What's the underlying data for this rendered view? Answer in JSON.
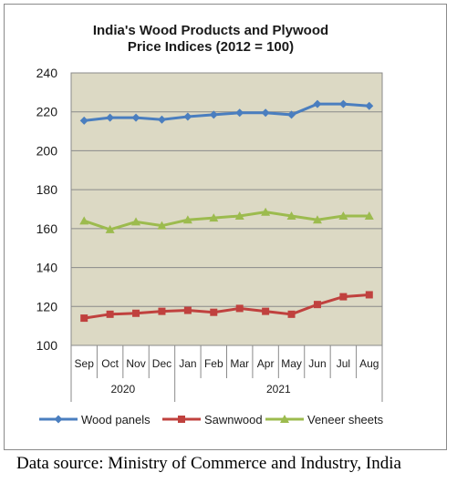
{
  "chart_data": {
    "type": "line",
    "title": "India's Wood Products and Plywood\nPrice Indices (2012 = 100)",
    "categories": [
      "Sep",
      "Oct",
      "Nov",
      "Dec",
      "Jan",
      "Feb",
      "Mar",
      "Apr",
      "May",
      "Jun",
      "Jul",
      "Aug"
    ],
    "year_groups": [
      {
        "label": "2020",
        "start": 0,
        "end": 3
      },
      {
        "label": "2021",
        "start": 4,
        "end": 11
      }
    ],
    "ylim": [
      100,
      240
    ],
    "yticks": [
      100,
      120,
      140,
      160,
      180,
      200,
      220,
      240
    ],
    "grid": true,
    "legend_position": "bottom",
    "plot_background": "#dcd9c4",
    "series": [
      {
        "name": "Wood panels",
        "color": "#4a7ebf",
        "marker": "diamond",
        "values": [
          215.5,
          217,
          217,
          216,
          217.5,
          218.5,
          219.5,
          219.5,
          218.5,
          224,
          224,
          223
        ]
      },
      {
        "name": "Sawnwood",
        "color": "#c0413e",
        "marker": "square",
        "values": [
          114,
          116,
          116.5,
          117.5,
          118,
          117,
          119,
          117.5,
          116,
          121,
          125,
          126
        ]
      },
      {
        "name": "Veneer sheets",
        "color": "#9cbb4e",
        "marker": "triangle",
        "values": [
          164,
          159.5,
          163.5,
          161.5,
          164.5,
          165.5,
          166.5,
          168.5,
          166.5,
          164.5,
          166.5,
          166.5
        ]
      }
    ]
  },
  "source": "Data source: Ministry of Commerce and Industry, India"
}
